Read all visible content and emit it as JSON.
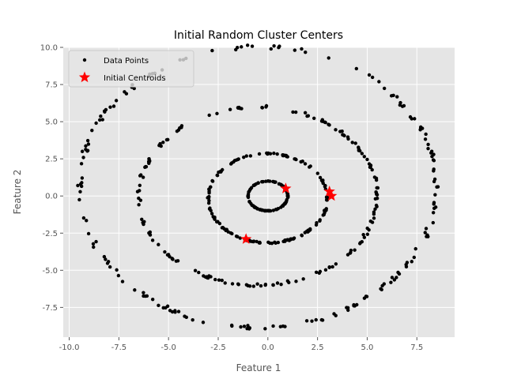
{
  "chart_data": {
    "type": "scatter",
    "title": "Initial Random Cluster Centers",
    "xlabel": "Feature 1",
    "ylabel": "Feature 2",
    "xlim": [
      -10.3,
      9.4
    ],
    "ylim": [
      -9.5,
      10.0
    ],
    "xticks": [
      -10.0,
      -7.5,
      -5.0,
      -2.5,
      0.0,
      2.5,
      5.0,
      7.5
    ],
    "yticks": [
      -7.5,
      -5.0,
      -2.5,
      0.0,
      2.5,
      5.0,
      7.5,
      10.0
    ],
    "grid": true,
    "legend_position": "top-left",
    "background_color": "#e5e5e5",
    "series": [
      {
        "name": "Data Points",
        "marker": "dot",
        "color": "#000000",
        "rings": [
          {
            "cx": 0.0,
            "cy": 0.0,
            "rx": 1.0,
            "ry": 1.0,
            "count": 110
          },
          {
            "cx": 0.0,
            "cy": -0.15,
            "rx": 3.0,
            "ry": 3.0,
            "count": 150
          },
          {
            "cx": -0.5,
            "cy": 0.0,
            "rx": 6.0,
            "ry": 6.0,
            "count": 170
          },
          {
            "cx": -0.5,
            "cy": 0.6,
            "rx": 9.0,
            "ry": 9.45,
            "count": 180
          }
        ]
      },
      {
        "name": "Initial Centroids",
        "marker": "star",
        "color": "#ff0000",
        "points": [
          [
            0.9,
            0.5
          ],
          [
            3.1,
            0.3
          ],
          [
            3.2,
            0.0
          ],
          [
            -1.1,
            -2.9
          ]
        ]
      }
    ]
  }
}
